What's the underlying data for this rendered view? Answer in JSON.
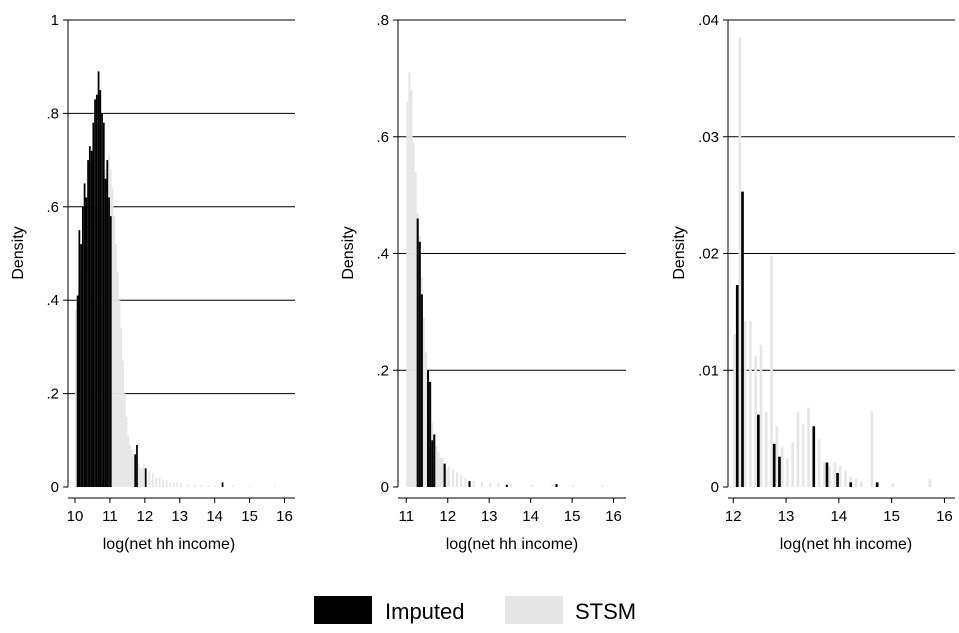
{
  "colors": {
    "imputed": "#000000",
    "stsm": "#e6e6e6",
    "grid": "#000000"
  },
  "legend": [
    {
      "key": "imputed",
      "label": "Imputed"
    },
    {
      "key": "stsm",
      "label": "STSM"
    }
  ],
  "chart_data": [
    {
      "type": "bar",
      "xlabel": "log(net hh income)",
      "ylabel": "Density",
      "xlim": [
        9.8,
        16.3
      ],
      "ylim": [
        0,
        1.0
      ],
      "xticks": [
        10,
        11,
        12,
        13,
        14,
        15,
        16
      ],
      "xtick_labels": [
        "10",
        "11",
        "12",
        "13",
        "14",
        "15",
        "16"
      ],
      "yticks": [
        0,
        0.2,
        0.4,
        0.6,
        0.8,
        1
      ],
      "ytick_labels": [
        "0",
        ".2",
        ".4",
        ".6",
        ".8",
        "1"
      ],
      "grid": true,
      "bin_width": 0.05,
      "series": [
        {
          "name": "Imputed",
          "x": [
            10.05,
            10.1,
            10.15,
            10.2,
            10.25,
            10.3,
            10.35,
            10.4,
            10.45,
            10.5,
            10.55,
            10.6,
            10.65,
            10.7,
            10.75,
            10.8,
            10.85,
            10.9,
            10.95,
            11.0,
            11.7,
            11.75,
            12.0,
            14.2
          ],
          "values": [
            0.41,
            0.55,
            0.52,
            0.6,
            0.65,
            0.62,
            0.7,
            0.73,
            0.72,
            0.78,
            0.83,
            0.84,
            0.89,
            0.85,
            0.8,
            0.78,
            0.66,
            0.7,
            0.62,
            0.58,
            0.07,
            0.09,
            0.04,
            0.01
          ]
        },
        {
          "name": "STSM",
          "x": [
            10.0,
            10.05,
            10.1,
            10.15,
            10.2,
            10.25,
            10.3,
            10.35,
            10.4,
            10.45,
            10.5,
            10.55,
            10.6,
            10.65,
            10.7,
            10.75,
            10.8,
            10.85,
            10.9,
            10.95,
            11.0,
            11.05,
            11.1,
            11.15,
            11.2,
            11.25,
            11.3,
            11.35,
            11.4,
            11.45,
            11.5,
            11.55,
            11.6,
            11.65,
            11.7,
            11.75,
            11.8,
            11.85,
            11.9,
            11.95,
            12.0,
            12.1,
            12.2,
            12.3,
            12.4,
            12.5,
            12.6,
            12.7,
            12.8,
            12.9,
            13.0,
            13.2,
            13.4,
            13.6,
            13.8,
            14.0,
            14.5,
            15.0,
            15.7
          ],
          "values": [
            0.38,
            0.39,
            0.42,
            0.45,
            0.47,
            0.5,
            0.52,
            0.54,
            0.55,
            0.57,
            0.59,
            0.6,
            0.62,
            0.64,
            0.67,
            0.66,
            0.65,
            0.68,
            0.7,
            0.71,
            0.68,
            0.64,
            0.58,
            0.52,
            0.46,
            0.4,
            0.34,
            0.27,
            0.2,
            0.15,
            0.11,
            0.09,
            0.08,
            0.07,
            0.06,
            0.05,
            0.05,
            0.04,
            0.04,
            0.05,
            0.03,
            0.035,
            0.03,
            0.02,
            0.02,
            0.015,
            0.015,
            0.01,
            0.01,
            0.01,
            0.008,
            0.006,
            0.005,
            0.005,
            0.004,
            0.003,
            0.003,
            0.002,
            0.002
          ]
        }
      ]
    },
    {
      "type": "bar",
      "xlabel": "log(net hh income)",
      "ylabel": "Density",
      "xlim": [
        10.8,
        16.3
      ],
      "ylim": [
        0,
        0.8
      ],
      "xticks": [
        11,
        12,
        13,
        14,
        15,
        16
      ],
      "xtick_labels": [
        "11",
        "12",
        "13",
        "14",
        "15",
        "16"
      ],
      "yticks": [
        0,
        0.2,
        0.4,
        0.6,
        0.8
      ],
      "ytick_labels": [
        "0",
        ".2",
        ".4",
        ".6",
        ".8"
      ],
      "grid": true,
      "bin_width": 0.05,
      "series": [
        {
          "name": "Imputed",
          "x": [
            11.25,
            11.3,
            11.35,
            11.5,
            11.55,
            11.6,
            11.65,
            11.9,
            12.5,
            13.4,
            14.6
          ],
          "values": [
            0.46,
            0.42,
            0.33,
            0.2,
            0.18,
            0.08,
            0.09,
            0.04,
            0.01,
            0.004,
            0.005
          ]
        },
        {
          "name": "STSM",
          "x": [
            11.0,
            11.05,
            11.1,
            11.15,
            11.2,
            11.25,
            11.3,
            11.35,
            11.4,
            11.45,
            11.5,
            11.55,
            11.6,
            11.65,
            11.7,
            11.75,
            11.8,
            11.85,
            11.9,
            11.95,
            12.0,
            12.1,
            12.2,
            12.3,
            12.4,
            12.5,
            12.6,
            12.8,
            13.0,
            13.2,
            13.5,
            14.0,
            14.5,
            15.0,
            15.7
          ],
          "values": [
            0.66,
            0.71,
            0.68,
            0.59,
            0.54,
            0.47,
            0.43,
            0.36,
            0.29,
            0.23,
            0.19,
            0.16,
            0.11,
            0.09,
            0.07,
            0.06,
            0.05,
            0.05,
            0.04,
            0.03,
            0.035,
            0.03,
            0.025,
            0.02,
            0.015,
            0.012,
            0.01,
            0.008,
            0.007,
            0.006,
            0.005,
            0.004,
            0.004,
            0.003,
            0.003
          ]
        }
      ]
    },
    {
      "type": "bar",
      "xlabel": "log(net hh income)",
      "ylabel": "Density",
      "xlim": [
        11.9,
        16.2
      ],
      "ylim": [
        0,
        0.04
      ],
      "xticks": [
        12,
        13,
        14,
        15,
        16
      ],
      "xtick_labels": [
        "12",
        "13",
        "14",
        "15",
        "16"
      ],
      "yticks": [
        0,
        0.01,
        0.02,
        0.03,
        0.04
      ],
      "ytick_labels": [
        "0",
        ".01",
        ".02",
        ".03",
        ".04"
      ],
      "grid": true,
      "bin_width": 0.05,
      "series": [
        {
          "name": "Imputed",
          "x": [
            12.05,
            12.15,
            12.45,
            12.75,
            12.85,
            13.5,
            13.75,
            13.95,
            14.2,
            14.7
          ],
          "values": [
            0.0173,
            0.0253,
            0.0062,
            0.0037,
            0.0026,
            0.0052,
            0.0021,
            0.0012,
            0.0004,
            0.0004
          ]
        },
        {
          "name": "STSM",
          "x": [
            12.0,
            12.05,
            12.1,
            12.2,
            12.3,
            12.4,
            12.5,
            12.6,
            12.7,
            12.8,
            12.9,
            13.0,
            13.1,
            13.2,
            13.3,
            13.4,
            13.5,
            13.6,
            13.7,
            13.8,
            13.9,
            14.0,
            14.1,
            14.2,
            14.3,
            14.4,
            14.6,
            14.7,
            15.0,
            15.7
          ],
          "values": [
            0.0131,
            0.0105,
            0.0385,
            0.0142,
            0.0142,
            0.0112,
            0.0122,
            0.0064,
            0.0198,
            0.0052,
            0.0034,
            0.0024,
            0.0038,
            0.0064,
            0.0054,
            0.0068,
            0.0038,
            0.0041,
            0.0021,
            0.0018,
            0.0021,
            0.0018,
            0.0014,
            0.0009,
            0.0007,
            0.0005,
            0.0065,
            0.0003,
            0.0003,
            0.0007
          ]
        }
      ]
    }
  ]
}
